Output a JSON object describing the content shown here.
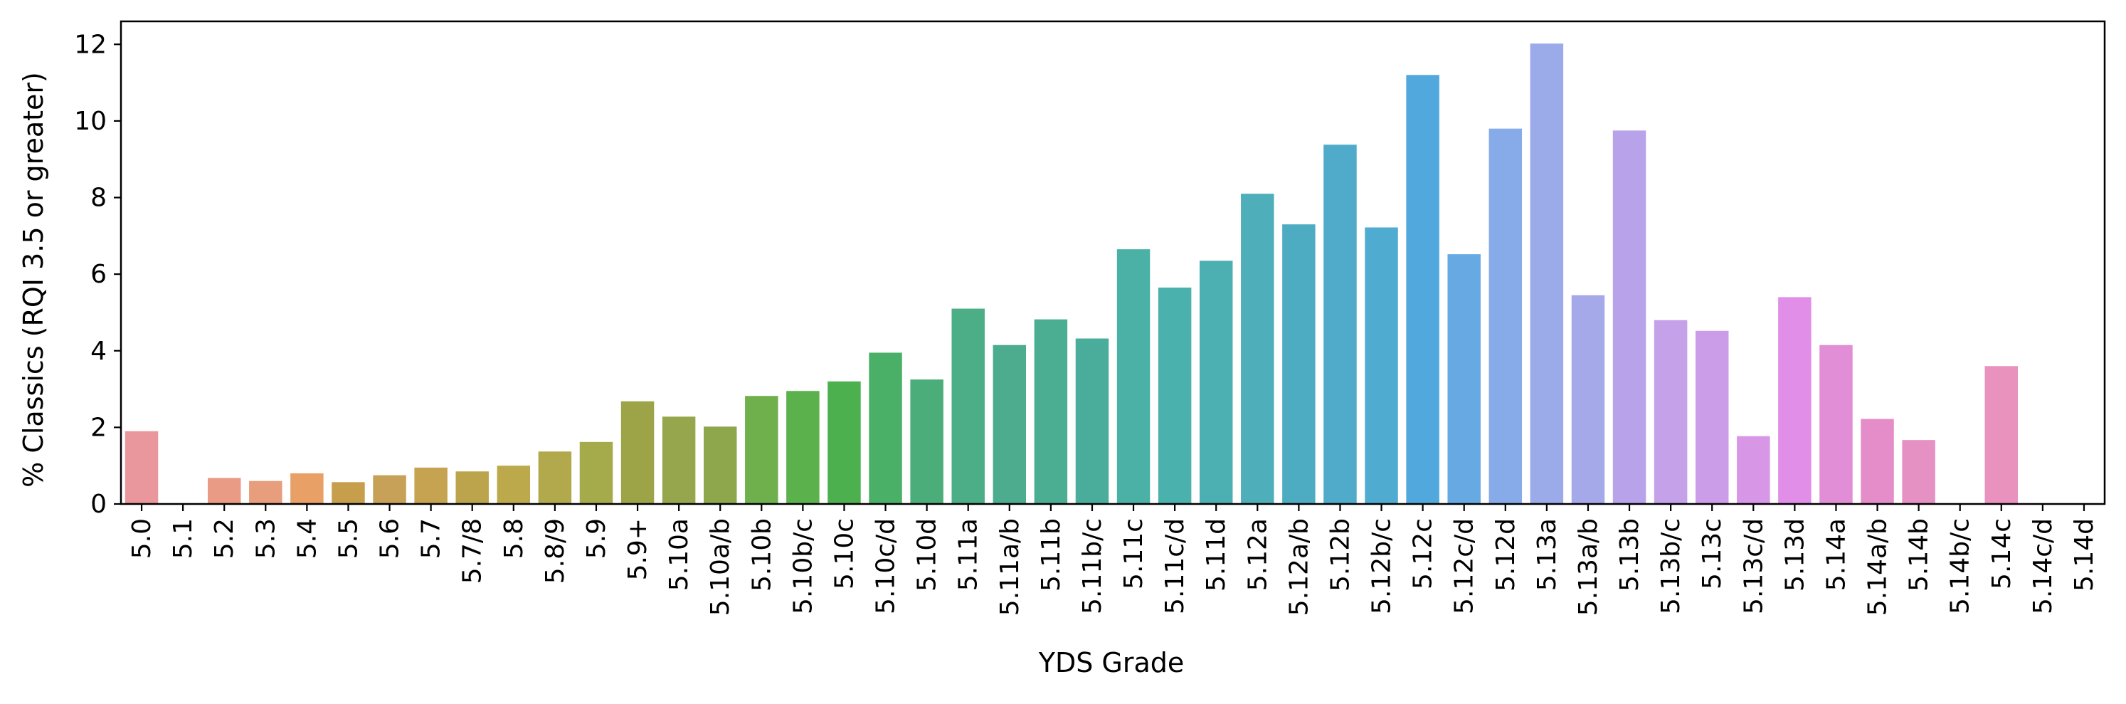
{
  "chart_data": {
    "type": "bar",
    "title": "",
    "xlabel": "YDS Grade",
    "ylabel": "% Classics (RQI 3.5 or greater)",
    "ylim": [
      0,
      12.6
    ],
    "yticks": [
      0,
      2,
      4,
      6,
      8,
      10,
      12
    ],
    "ytick_labels": [
      "0",
      "2",
      "4",
      "6",
      "8",
      "10",
      "12"
    ],
    "grid": false,
    "legend": "none",
    "categories": [
      "5.0",
      "5.1",
      "5.2",
      "5.3",
      "5.4",
      "5.5",
      "5.6",
      "5.7",
      "5.7/8",
      "5.8",
      "5.8/9",
      "5.9",
      "5.9+",
      "5.10a",
      "5.10a/b",
      "5.10b",
      "5.10b/c",
      "5.10c",
      "5.10c/d",
      "5.10d",
      "5.11a",
      "5.11a/b",
      "5.11b",
      "5.11b/c",
      "5.11c",
      "5.11c/d",
      "5.11d",
      "5.12a",
      "5.12a/b",
      "5.12b",
      "5.12b/c",
      "5.12c",
      "5.12c/d",
      "5.12d",
      "5.13a",
      "5.13a/b",
      "5.13b",
      "5.13b/c",
      "5.13c",
      "5.13c/d",
      "5.13d",
      "5.14a",
      "5.14a/b",
      "5.14b",
      "5.14b/c",
      "5.14c",
      "5.14c/d",
      "5.14d"
    ],
    "values": [
      1.9,
      0,
      0.68,
      0.6,
      0.8,
      0.57,
      0.75,
      0.95,
      0.85,
      1.0,
      1.37,
      1.62,
      2.68,
      2.28,
      2.02,
      2.82,
      2.95,
      3.2,
      3.95,
      3.25,
      5.1,
      4.15,
      4.82,
      4.32,
      6.65,
      5.65,
      6.35,
      8.1,
      7.3,
      9.38,
      7.22,
      11.2,
      6.52,
      9.8,
      12.02,
      5.45,
      9.75,
      4.8,
      4.52,
      1.77,
      5.4,
      4.15,
      2.22,
      1.67,
      0,
      3.6,
      0,
      0
    ],
    "colors": [
      "#e9969d",
      "#e8998f",
      "#e99b86",
      "#e89e7c",
      "#e8a067",
      "#c79e4c",
      "#c6a157",
      "#c6a350",
      "#bca44d",
      "#bca94c",
      "#b1a94b",
      "#a5aa4a",
      "#9da448",
      "#96a64d",
      "#8ea64c",
      "#6faf4c",
      "#5bb14b",
      "#4cb04f",
      "#4bb067",
      "#4bae7a",
      "#4cae86",
      "#4cac8d",
      "#4bae93",
      "#4aac9a",
      "#4bb1a6",
      "#4bb1ad",
      "#4cb0b3",
      "#4eafba",
      "#4eacc2",
      "#4fabc9",
      "#50abd1",
      "#51a8dc",
      "#66a9e3",
      "#87aae8",
      "#9baae8",
      "#a6a9e9",
      "#b8a3ea",
      "#c4a1e9",
      "#cb9de8",
      "#d896e7",
      "#e08ee7",
      "#e28ed6",
      "#e48dc9",
      "#e691c4",
      "#e892bf",
      "#e992bd",
      "#e993b9",
      "#e995b3"
    ]
  }
}
